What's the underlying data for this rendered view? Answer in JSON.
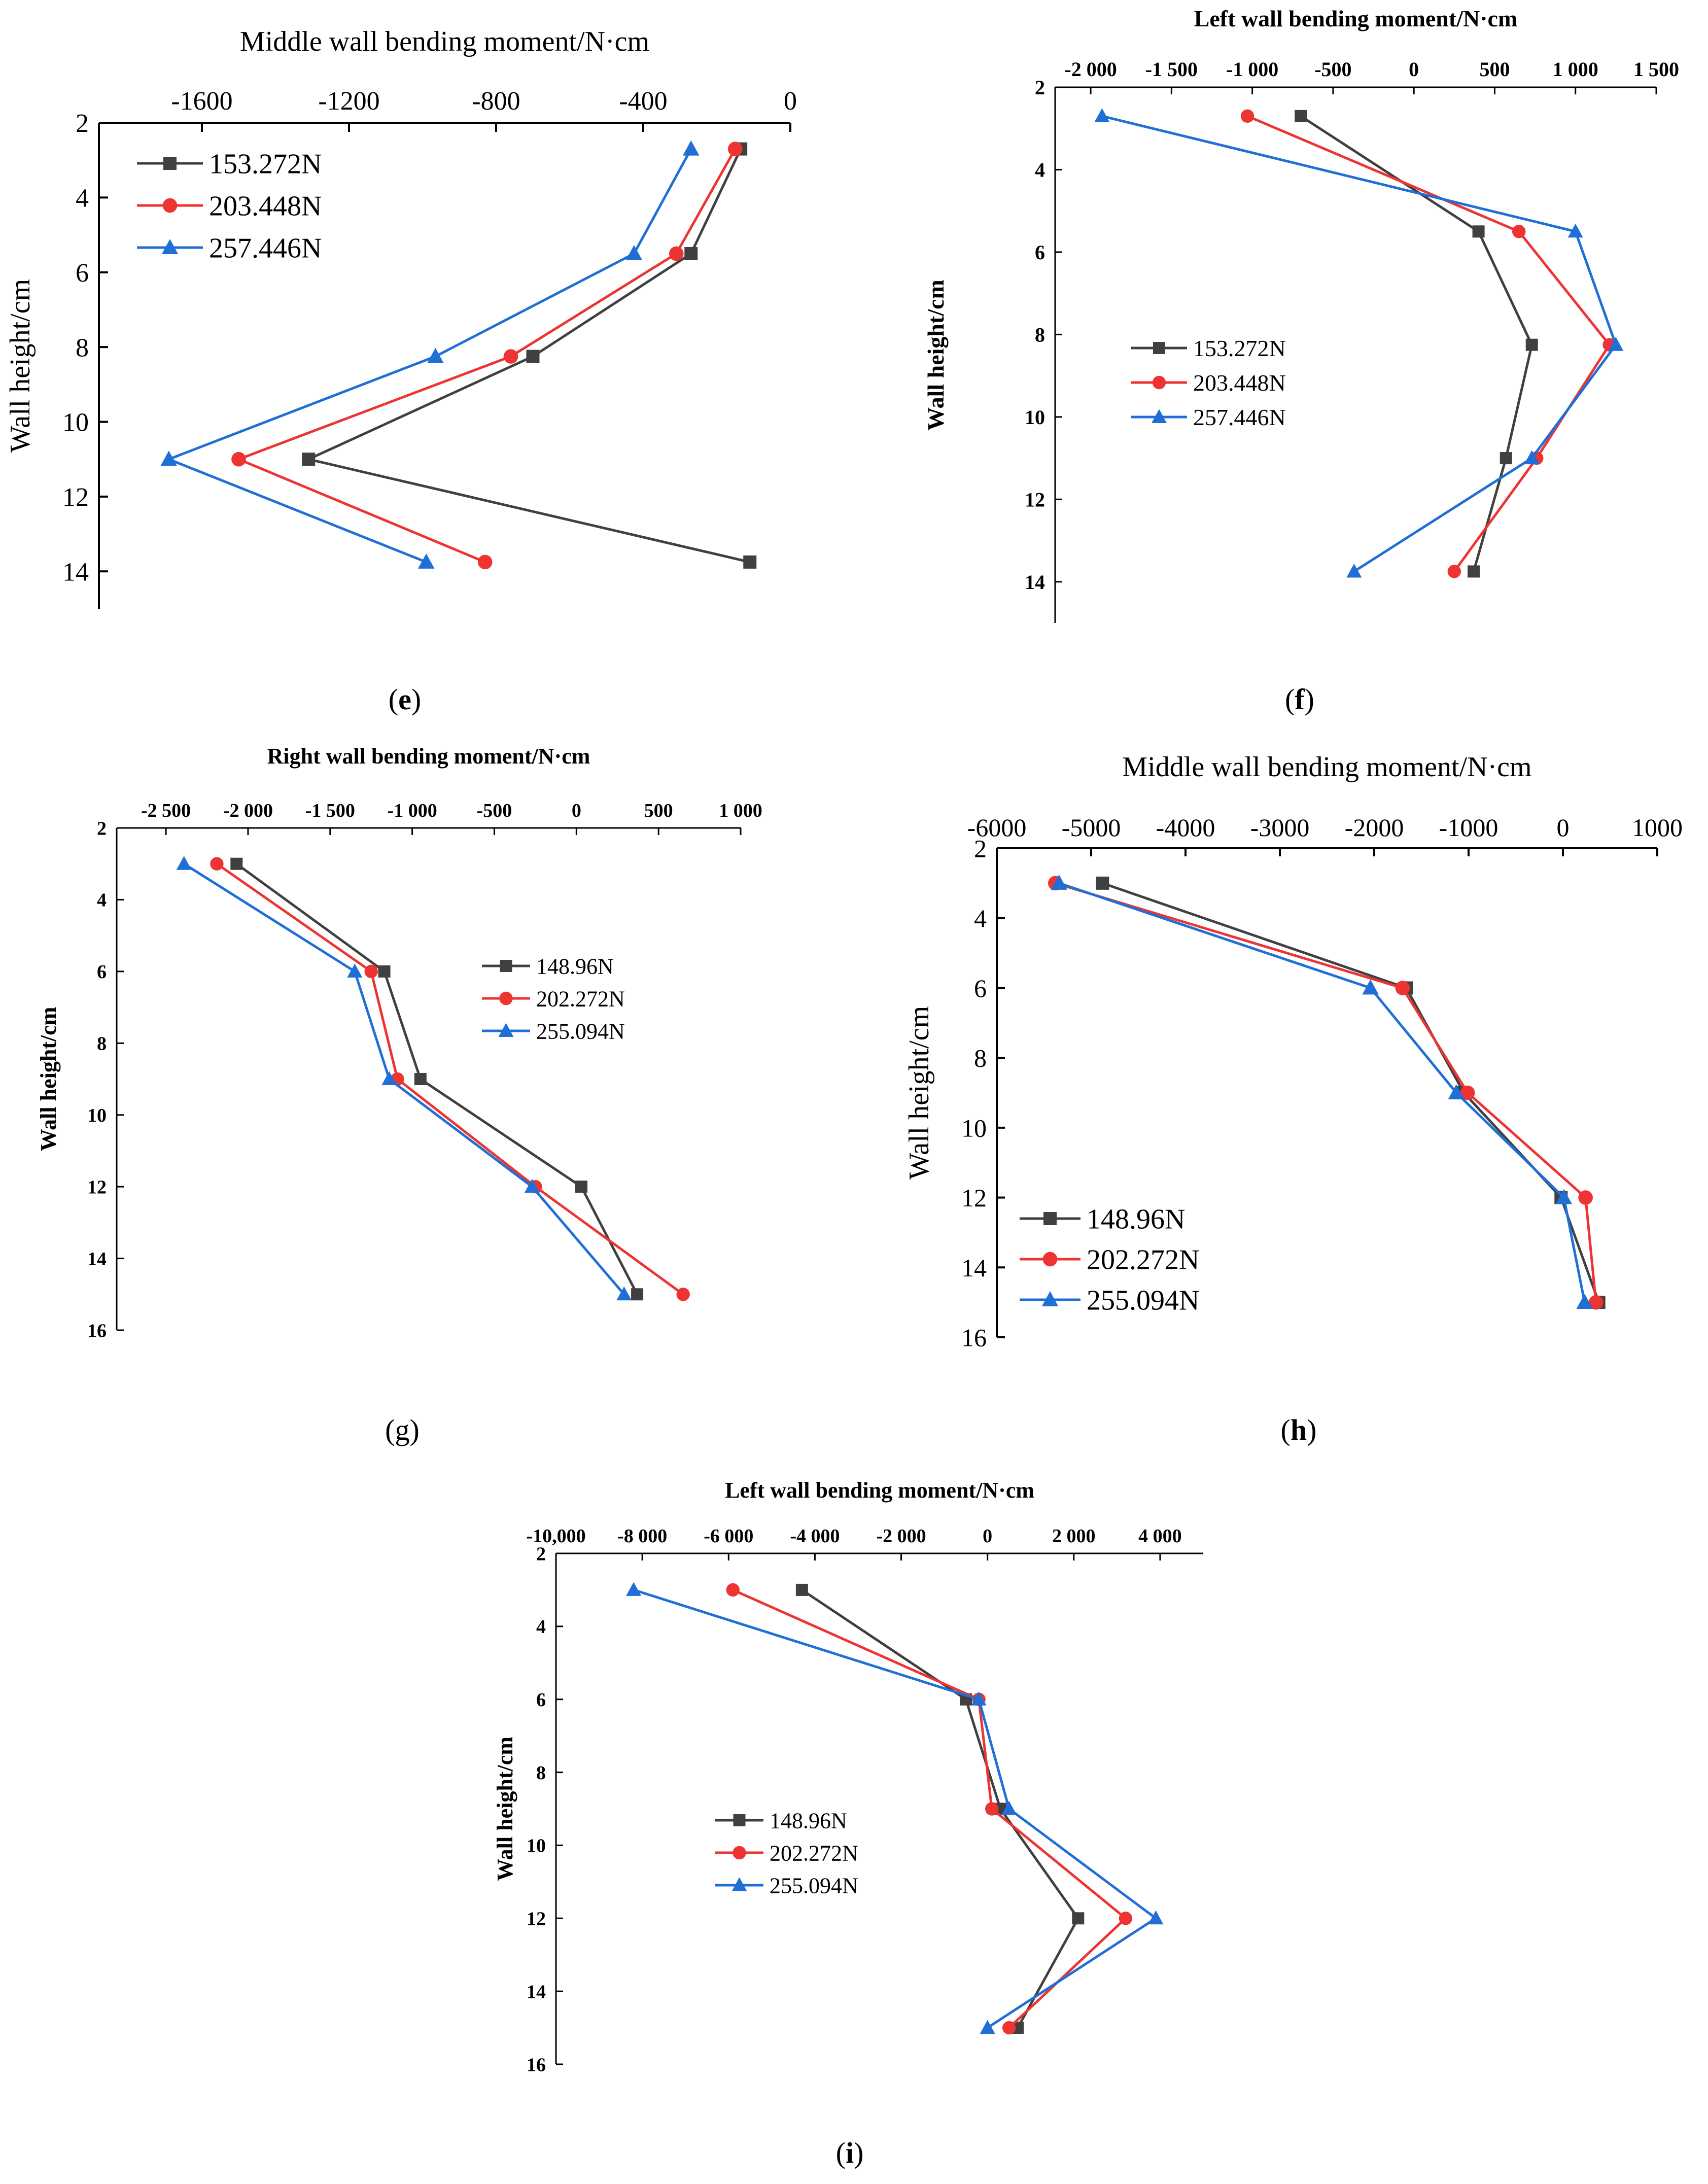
{
  "chart_data": [
    {
      "id": "e",
      "type": "line",
      "caption_letter": "e",
      "title": "Middle wall bending moment/N·cm",
      "xlabel": "Middle wall bending moment/N·cm",
      "ylabel": "Wall height/cm",
      "xlim": [
        -1880,
        0
      ],
      "ylim": [
        2,
        15
      ],
      "xticks": [
        -1600,
        -1200,
        -800,
        -400,
        0
      ],
      "xtick_labels": [
        "-1600",
        "-1200",
        "-800",
        "-400",
        "0"
      ],
      "yticks": [
        2,
        4,
        6,
        8,
        10,
        12,
        14
      ],
      "ytick_labels": [
        "2",
        "4",
        "6",
        "8",
        "10",
        "12",
        "14"
      ],
      "legend_position": "top-left",
      "series": [
        {
          "name": "153.272N",
          "color": "#404040",
          "marker": "square",
          "x": [
            -135,
            -270,
            -700,
            -1310,
            -110
          ],
          "y": [
            2.7,
            5.5,
            8.25,
            11.0,
            13.75
          ]
        },
        {
          "name": "203.448N",
          "color": "#ee3333",
          "marker": "circle",
          "x": [
            -150,
            -310,
            -760,
            -1500,
            -830
          ],
          "y": [
            2.7,
            5.5,
            8.25,
            11.0,
            13.75
          ]
        },
        {
          "name": "257.446N",
          "color": "#1f6fd6",
          "marker": "triangle",
          "x": [
            -270,
            -425,
            -965,
            -1690,
            -990
          ],
          "y": [
            2.7,
            5.5,
            8.25,
            11.0,
            13.75
          ]
        }
      ]
    },
    {
      "id": "f",
      "type": "line",
      "caption_letter": "f",
      "title": "Left wall bending moment/N·cm",
      "xlabel": "Left wall bending moment/N·cm",
      "ylabel": "Wall height/cm",
      "xlim": [
        -2220,
        1500
      ],
      "ylim": [
        2,
        15
      ],
      "xticks": [
        -2000,
        -1500,
        -1000,
        -500,
        0,
        500,
        1000,
        1500
      ],
      "xtick_labels": [
        "-2 000",
        "-1 500",
        "-1 000",
        "-500",
        "0",
        "500",
        "1 000",
        "1 500"
      ],
      "yticks": [
        2,
        4,
        6,
        8,
        10,
        12,
        14
      ],
      "ytick_labels": [
        "2",
        "4",
        "6",
        "8",
        "10",
        "12",
        "14"
      ],
      "legend_position": "center-left",
      "series": [
        {
          "name": "153.272N",
          "color": "#404040",
          "marker": "square",
          "x": [
            -700,
            400,
            730,
            570,
            370
          ],
          "y": [
            2.7,
            5.5,
            8.25,
            11.0,
            13.75
          ]
        },
        {
          "name": "203.448N",
          "color": "#ee3333",
          "marker": "circle",
          "x": [
            -1030,
            650,
            1210,
            760,
            250
          ],
          "y": [
            2.7,
            5.5,
            8.25,
            11.0,
            13.75
          ]
        },
        {
          "name": "257.446N",
          "color": "#1f6fd6",
          "marker": "triangle",
          "x": [
            -1930,
            1000,
            1250,
            730,
            -370
          ],
          "y": [
            2.7,
            5.5,
            8.25,
            11.0,
            13.75
          ]
        }
      ]
    },
    {
      "id": "g",
      "type": "line",
      "caption_letter": "g",
      "title": "Right wall bending moment/N·cm",
      "xlabel": "Right wall bending moment/N·cm",
      "ylabel": "Wall height/cm",
      "xlim": [
        -2800,
        1000
      ],
      "ylim": [
        2,
        16
      ],
      "xticks": [
        -2500,
        -2000,
        -1500,
        -1000,
        -500,
        0,
        500,
        1000
      ],
      "xtick_labels": [
        "-2 500",
        "-2 000",
        "-1 500",
        "-1 000",
        "-500",
        "0",
        "500",
        "1 000"
      ],
      "yticks": [
        2,
        4,
        6,
        8,
        10,
        12,
        14,
        16
      ],
      "ytick_labels": [
        "2",
        "4",
        "6",
        "8",
        "10",
        "12",
        "14",
        "16"
      ],
      "legend_position": "top-right",
      "series": [
        {
          "name": "148.96N",
          "color": "#404040",
          "marker": "square",
          "x": [
            -2070,
            -1170,
            -950,
            30,
            370
          ],
          "y": [
            3,
            6,
            9,
            12,
            15
          ]
        },
        {
          "name": "202.272N",
          "color": "#ee3333",
          "marker": "circle",
          "x": [
            -2190,
            -1250,
            -1090,
            -250,
            650
          ],
          "y": [
            3,
            6,
            9,
            12,
            15
          ]
        },
        {
          "name": "255.094N",
          "color": "#1f6fd6",
          "marker": "triangle",
          "x": [
            -2390,
            -1350,
            -1140,
            -270,
            290
          ],
          "y": [
            3,
            6,
            9,
            12,
            15
          ]
        }
      ]
    },
    {
      "id": "h",
      "type": "line",
      "caption_letter": "h",
      "title": "Middle wall bending moment/N·cm",
      "xlabel": "Middle wall bending moment/N·cm",
      "ylabel": "Wall height/cm",
      "xlim": [
        -6000,
        1000
      ],
      "ylim": [
        2,
        16
      ],
      "xticks": [
        -6000,
        -5000,
        -4000,
        -3000,
        -2000,
        -1000,
        0,
        1000
      ],
      "xtick_labels": [
        "-6000",
        "-5000",
        "-4000",
        "-3000",
        "-2000",
        "-1000",
        "0",
        "1000"
      ],
      "yticks": [
        2,
        4,
        6,
        8,
        10,
        12,
        14,
        16
      ],
      "ytick_labels": [
        "2",
        "4",
        "6",
        "8",
        "10",
        "12",
        "14",
        "16"
      ],
      "legend_position": "bottom-left",
      "series": [
        {
          "name": "148.96N",
          "color": "#404040",
          "marker": "square",
          "x": [
            -4880,
            -1660,
            -1050,
            -20,
            380
          ],
          "y": [
            3,
            6,
            9,
            12,
            15
          ]
        },
        {
          "name": "202.272N",
          "color": "#ee3333",
          "marker": "circle",
          "x": [
            -5380,
            -1700,
            -1010,
            240,
            350
          ],
          "y": [
            3,
            6,
            9,
            12,
            15
          ]
        },
        {
          "name": "255.094N",
          "color": "#1f6fd6",
          "marker": "triangle",
          "x": [
            -5340,
            -2040,
            -1130,
            10,
            230
          ],
          "y": [
            3,
            6,
            9,
            12,
            15
          ]
        }
      ]
    },
    {
      "id": "i",
      "type": "line",
      "caption_letter": "i",
      "title": "Left wall bending moment/N·cm",
      "xlabel": "Left wall bending moment/N·cm",
      "ylabel": "Wall height/cm",
      "xlim": [
        -10000,
        5000
      ],
      "ylim": [
        2,
        16
      ],
      "xticks": [
        -10000,
        -8000,
        -6000,
        -4000,
        -2000,
        0,
        2000,
        4000
      ],
      "xtick_labels": [
        "-10,000",
        "-8 000",
        "-6 000",
        "-4 000",
        "-2 000",
        "0",
        "2 000",
        "4 000"
      ],
      "yticks": [
        2,
        4,
        6,
        8,
        10,
        12,
        14,
        16
      ],
      "ytick_labels": [
        "2",
        "4",
        "6",
        "8",
        "10",
        "12",
        "14",
        "16"
      ],
      "legend_position": "center-left",
      "series": [
        {
          "name": "148.96N",
          "color": "#404040",
          "marker": "square",
          "x": [
            -4300,
            -500,
            300,
            2100,
            700
          ],
          "y": [
            3,
            6,
            9,
            12,
            15
          ]
        },
        {
          "name": "202.272N",
          "color": "#ee3333",
          "marker": "circle",
          "x": [
            -5900,
            -200,
            100,
            3200,
            500
          ],
          "y": [
            3,
            6,
            9,
            12,
            15
          ]
        },
        {
          "name": "255.094N",
          "color": "#1f6fd6",
          "marker": "triangle",
          "x": [
            -8200,
            -200,
            500,
            3900,
            0
          ],
          "y": [
            3,
            6,
            9,
            12,
            15
          ]
        }
      ]
    }
  ]
}
